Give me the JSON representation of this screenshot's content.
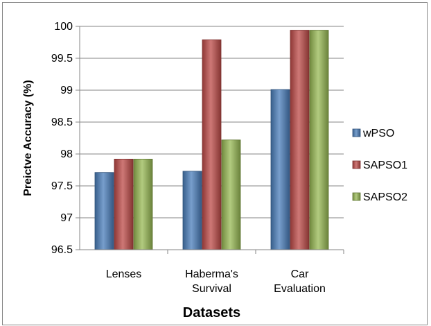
{
  "chart_data": {
    "type": "bar",
    "categories": [
      [
        "Lenses"
      ],
      [
        "Haberma's",
        "Survival"
      ],
      [
        "Car",
        "Evaluation"
      ]
    ],
    "series": [
      {
        "name": "wPSO",
        "values": [
          97.71,
          97.73,
          99.01
        ],
        "color": "#4a7ebb"
      },
      {
        "name": "SAPSO1",
        "values": [
          97.92,
          99.79,
          99.94
        ],
        "color": "#be4b48"
      },
      {
        "name": "SAPSO2",
        "values": [
          97.92,
          98.22,
          99.94
        ],
        "color": "#98b954"
      }
    ],
    "xlabel": "Datasets",
    "ylabel": "Preictve Accuracy (%)",
    "ylim": [
      96.5,
      100
    ],
    "yticks": [
      96.5,
      97,
      97.5,
      98,
      98.5,
      99,
      99.5,
      100
    ],
    "grid": true,
    "legend_position": "right"
  }
}
